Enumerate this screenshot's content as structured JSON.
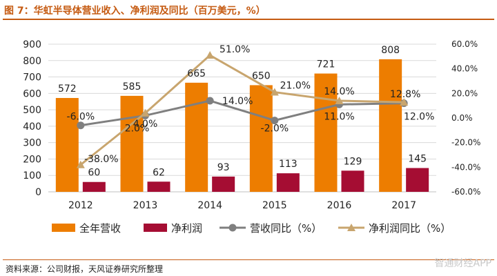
{
  "title": "图 7：华虹半导体营业收入、净利润及同比（百万美元，%）",
  "source": "资料来源：公司财报，天风证券研究所整理",
  "watermark": "智通财经APP",
  "colors": {
    "revenue": "#ed7d00",
    "net_profit": "#a50d33",
    "revenue_yoy": "#7f7f7f",
    "profit_yoy": "#c8a56e",
    "title": "#c55a11",
    "grid": "#d9d9d9"
  },
  "chart_data": {
    "type": "bar",
    "categories": [
      "2012",
      "2013",
      "2014",
      "2015",
      "2016",
      "2017"
    ],
    "series": [
      {
        "name": "全年营收",
        "kind": "bar",
        "axis": "left",
        "values": [
          572,
          585,
          665,
          650,
          721,
          808
        ],
        "labels": [
          "572",
          "585",
          "665",
          "650",
          "721",
          "808"
        ]
      },
      {
        "name": "净利润",
        "kind": "bar",
        "axis": "left",
        "values": [
          60,
          62,
          93,
          113,
          129,
          145
        ],
        "labels": [
          "60",
          "62",
          "93",
          "113",
          "129",
          "145"
        ]
      },
      {
        "name": "营收同比（%）",
        "kind": "line",
        "axis": "right",
        "values": [
          -6.0,
          2.0,
          14.0,
          -2.0,
          11.0,
          12.0
        ],
        "labels": [
          "-6.0%",
          "2.0%",
          "14.0%",
          "-2.0%",
          "11.0%",
          "12.0%"
        ]
      },
      {
        "name": "净利润同比（%）",
        "kind": "line",
        "axis": "right",
        "values": [
          -38.0,
          4.0,
          51.0,
          21.0,
          14.0,
          12.8
        ],
        "labels": [
          "-38.0%",
          "4.0%",
          "51.0%",
          "21.0%",
          "14.0%",
          "12.8%"
        ]
      }
    ],
    "left_axis": {
      "min": 0,
      "max": 900,
      "ticks": [
        "0",
        "100",
        "200",
        "300",
        "400",
        "500",
        "600",
        "700",
        "800",
        "900"
      ]
    },
    "right_axis": {
      "min": -60,
      "max": 60,
      "ticks": [
        "-60.0%",
        "-40.0%",
        "-20.0%",
        "0.0%",
        "20.0%",
        "40.0%",
        "60.0%"
      ]
    },
    "grid": true,
    "legend_position": "bottom"
  }
}
